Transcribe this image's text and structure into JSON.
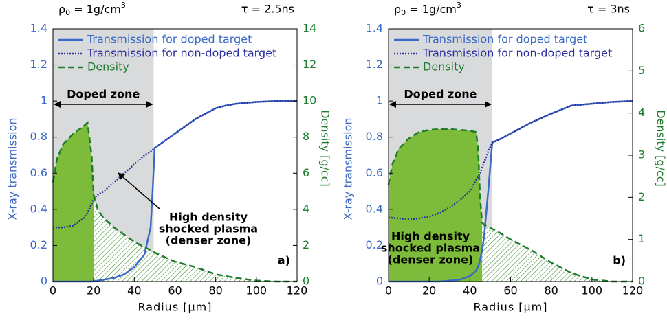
{
  "chart_data": [
    {
      "type": "line",
      "density_label": [
        "ρ",
        "0",
        " = 1g/cm",
        "3"
      ],
      "time_label": "τ = 2.5ns",
      "xlabel": "Radius [μm]",
      "ylabel": "X-ray transmission",
      "y2label": "Density [g/cc]",
      "x": [
        0,
        2,
        5,
        10,
        15,
        17,
        19,
        20,
        22,
        25,
        30,
        35,
        40,
        45,
        48,
        49,
        50,
        55,
        60,
        70,
        80,
        85,
        90,
        100,
        110,
        120
      ],
      "xlim": [
        0,
        120
      ],
      "xticks": [
        0,
        20,
        40,
        60,
        80,
        100,
        120
      ],
      "ylim": [
        0,
        1.4
      ],
      "yticks": [
        0,
        0.2,
        0.4,
        0.6,
        0.8,
        1,
        1.2,
        1.4
      ],
      "y2lim": [
        0,
        14
      ],
      "y2ticks": [
        0,
        2,
        4,
        6,
        8,
        10,
        12,
        14
      ],
      "series": [
        {
          "name": "Transmission for doped target",
          "color": "#3b69c6",
          "style": "solid",
          "values": [
            0,
            0,
            0,
            0,
            0,
            0,
            0,
            0.002,
            0.005,
            0.01,
            0.02,
            0.04,
            0.08,
            0.15,
            0.3,
            0.5,
            0.74,
            0.78,
            0.82,
            0.9,
            0.96,
            0.975,
            0.985,
            0.995,
            1.0,
            1.0
          ]
        },
        {
          "name": "Transmission for non-doped target",
          "color": "#2b2f9f",
          "style": "dotted",
          "values": [
            0.3,
            0.3,
            0.3,
            0.31,
            0.35,
            0.38,
            0.43,
            0.46,
            0.48,
            0.5,
            0.55,
            0.6,
            0.65,
            0.7,
            0.72,
            0.73,
            0.74,
            0.78,
            0.82,
            0.9,
            0.96,
            0.975,
            0.985,
            0.995,
            1.0,
            1.0
          ]
        },
        {
          "name": "Density",
          "color": "#1e7b2c",
          "style": "dashed",
          "axis": "y2",
          "values": [
            5.5,
            6.8,
            7.6,
            8.2,
            8.6,
            8.8,
            7,
            4.8,
            4,
            3.5,
            3,
            2.6,
            2.2,
            1.9,
            1.75,
            1.7,
            1.6,
            1.35,
            1.1,
            0.8,
            0.4,
            0.3,
            0.2,
            0.05,
            0,
            0
          ]
        }
      ],
      "doped_zone": {
        "label": "Doped zone",
        "range": [
          0,
          49.5
        ],
        "color": "#d9dadc"
      },
      "dense_zone_end": 20,
      "fill_color": "#7dbb3a",
      "annotation": [
        "High density",
        "shocked plasma",
        "(denser zone)"
      ],
      "panel_label": "a)"
    },
    {
      "type": "line",
      "density_label": [
        "ρ",
        "0",
        " = 1g/cm",
        "3"
      ],
      "time_label": "τ = 3ns",
      "xlabel": "Radius [μm]",
      "ylabel": "X-ray transmission",
      "y2label": "Density [g/cc]",
      "x": [
        0,
        2,
        5,
        10,
        15,
        20,
        25,
        30,
        35,
        40,
        43,
        44,
        45,
        46,
        47,
        49,
        51,
        55,
        60,
        70,
        80,
        90,
        100,
        110,
        120
      ],
      "xlim": [
        0,
        120
      ],
      "xticks": [
        0,
        20,
        40,
        60,
        80,
        100,
        120
      ],
      "ylim": [
        0,
        1.4
      ],
      "yticks": [
        0,
        0.2,
        0.4,
        0.6,
        0.8,
        1,
        1.2,
        1.4
      ],
      "y2lim": [
        0,
        6
      ],
      "y2ticks": [
        0,
        1,
        2,
        3,
        4,
        5,
        6
      ],
      "series": [
        {
          "name": "Transmission for doped target",
          "color": "#3b69c6",
          "style": "solid",
          "values": [
            0,
            0,
            0,
            0,
            0,
            0,
            0,
            0.005,
            0.01,
            0.03,
            0.06,
            0.08,
            0.12,
            0.17,
            0.25,
            0.5,
            0.77,
            0.79,
            0.82,
            0.88,
            0.93,
            0.975,
            0.985,
            0.995,
            1.0
          ]
        },
        {
          "name": "Transmission for non-doped target",
          "color": "#2b2f9f",
          "style": "dotted",
          "values": [
            0.355,
            0.353,
            0.35,
            0.345,
            0.35,
            0.36,
            0.38,
            0.41,
            0.45,
            0.5,
            0.56,
            0.58,
            0.6,
            0.63,
            0.66,
            0.72,
            0.77,
            0.79,
            0.82,
            0.88,
            0.93,
            0.975,
            0.985,
            0.995,
            1.0
          ]
        },
        {
          "name": "Density",
          "color": "#1e7b2c",
          "style": "dashed",
          "axis": "y2",
          "values": [
            2.3,
            2.8,
            3.15,
            3.4,
            3.55,
            3.6,
            3.62,
            3.62,
            3.6,
            3.58,
            3.55,
            3.2,
            2.0,
            1.4,
            1.35,
            1.3,
            1.25,
            1.15,
            1.0,
            0.75,
            0.45,
            0.2,
            0.05,
            0,
            0
          ]
        }
      ],
      "doped_zone": {
        "label": "Doped zone",
        "range": [
          0,
          51
        ],
        "color": "#d9dadc"
      },
      "dense_zone_end": 46,
      "fill_color": "#7dbb3a",
      "annotation": [
        "High density",
        "shocked plasma",
        "(denser zone)"
      ],
      "panel_label": "b)"
    }
  ]
}
